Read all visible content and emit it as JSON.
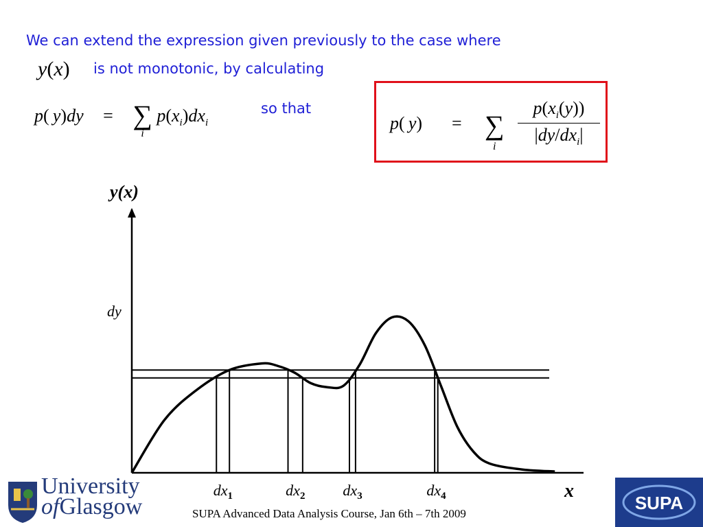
{
  "text": {
    "line1": "We can extend the expression given previously to the case where",
    "line2": "is not monotonic, by calculating",
    "so_that": "so that"
  },
  "footer": "SUPA Advanced Data Analysis Course, Jan 6th – 7th 2009",
  "logos": {
    "university_line1": "University",
    "university_of": "of",
    "university_line2": "Glasgow",
    "supa": "SUPA"
  },
  "colors": {
    "text_blue": "#1f1fd6",
    "box_red": "#e0101a",
    "supa_blue": "#1d3c8c",
    "glasgow_blue": "#243b7a"
  },
  "chart_data": {
    "type": "line",
    "ylabel": "y(x)",
    "xlabel": "x",
    "dy_label": "dy",
    "dx_labels": [
      "dx",
      "dx",
      "dx",
      "dx"
    ],
    "dx_subscripts": [
      "1",
      "2",
      "3",
      "4"
    ],
    "curve": {
      "x": [
        0,
        1,
        2,
        3,
        4,
        4.5,
        5,
        5.5,
        6,
        6.5,
        7,
        7.5,
        8,
        8.5,
        9,
        9.5,
        10,
        10.5,
        11,
        12,
        13
      ],
      "y": [
        0,
        4.0,
        6.3,
        7.8,
        8.3,
        8.1,
        7.6,
        6.8,
        6.5,
        6.6,
        8.2,
        10.6,
        11.8,
        11.5,
        9.7,
        6.6,
        3.5,
        1.6,
        0.7,
        0.25,
        0.1
      ]
    },
    "dy_band": [
      7.2,
      7.8
    ]
  }
}
